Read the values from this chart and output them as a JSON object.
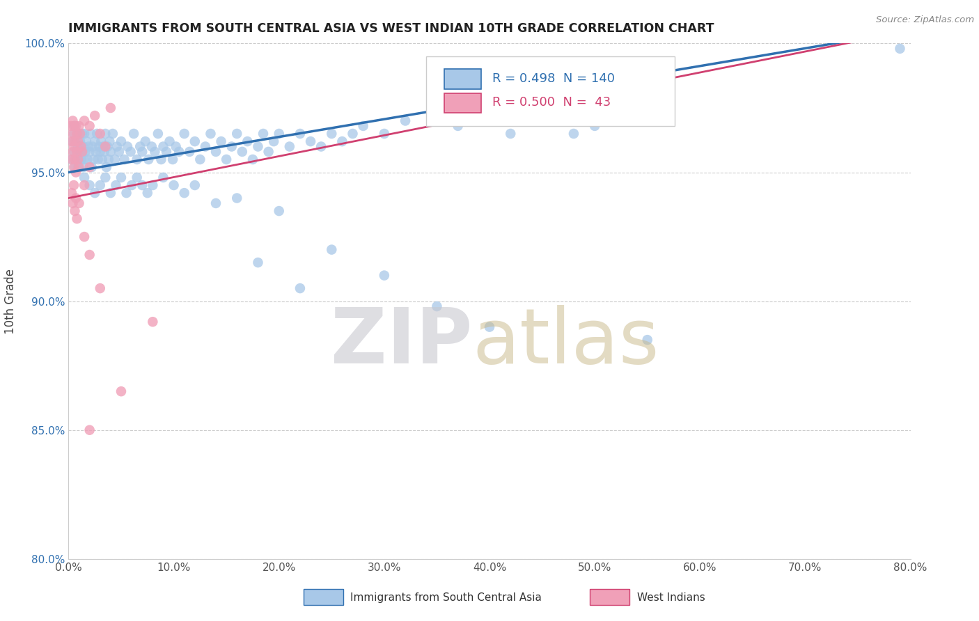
{
  "title": "IMMIGRANTS FROM SOUTH CENTRAL ASIA VS WEST INDIAN 10TH GRADE CORRELATION CHART",
  "source": "Source: ZipAtlas.com",
  "ylabel": "10th Grade",
  "xlim": [
    0.0,
    80.0
  ],
  "ylim": [
    80.0,
    100.0
  ],
  "xticks": [
    0.0,
    10.0,
    20.0,
    30.0,
    40.0,
    50.0,
    60.0,
    70.0,
    80.0
  ],
  "yticks": [
    80.0,
    85.0,
    90.0,
    95.0,
    100.0
  ],
  "blue_color": "#a8c8e8",
  "pink_color": "#f0a0b8",
  "blue_line_color": "#3070b0",
  "pink_line_color": "#d04070",
  "legend_blue_R": "0.498",
  "legend_blue_N": "140",
  "legend_pink_R": "0.500",
  "legend_pink_N": "43",
  "blue_scatter": [
    [
      0.3,
      95.5
    ],
    [
      0.4,
      96.2
    ],
    [
      0.5,
      95.8
    ],
    [
      0.5,
      96.5
    ],
    [
      0.6,
      95.2
    ],
    [
      0.6,
      96.8
    ],
    [
      0.7,
      95.5
    ],
    [
      0.7,
      96.2
    ],
    [
      0.8,
      95.8
    ],
    [
      0.8,
      96.5
    ],
    [
      0.9,
      95.2
    ],
    [
      0.9,
      96.0
    ],
    [
      1.0,
      95.5
    ],
    [
      1.0,
      96.5
    ],
    [
      1.1,
      95.8
    ],
    [
      1.1,
      96.2
    ],
    [
      1.2,
      95.5
    ],
    [
      1.2,
      96.0
    ],
    [
      1.3,
      95.8
    ],
    [
      1.3,
      96.5
    ],
    [
      1.4,
      95.2
    ],
    [
      1.4,
      96.0
    ],
    [
      1.5,
      95.5
    ],
    [
      1.5,
      96.5
    ],
    [
      1.6,
      95.8
    ],
    [
      1.7,
      96.2
    ],
    [
      1.8,
      95.5
    ],
    [
      1.9,
      96.0
    ],
    [
      2.0,
      95.8
    ],
    [
      2.1,
      96.5
    ],
    [
      2.2,
      95.2
    ],
    [
      2.3,
      96.0
    ],
    [
      2.4,
      95.5
    ],
    [
      2.5,
      96.2
    ],
    [
      2.6,
      95.8
    ],
    [
      2.7,
      96.5
    ],
    [
      2.8,
      95.5
    ],
    [
      2.9,
      96.0
    ],
    [
      3.0,
      95.8
    ],
    [
      3.1,
      96.2
    ],
    [
      3.2,
      95.5
    ],
    [
      3.3,
      96.0
    ],
    [
      3.4,
      95.8
    ],
    [
      3.5,
      96.5
    ],
    [
      3.6,
      95.2
    ],
    [
      3.7,
      96.0
    ],
    [
      3.8,
      95.5
    ],
    [
      3.9,
      96.2
    ],
    [
      4.0,
      95.8
    ],
    [
      4.2,
      96.5
    ],
    [
      4.4,
      95.5
    ],
    [
      4.6,
      96.0
    ],
    [
      4.8,
      95.8
    ],
    [
      5.0,
      96.2
    ],
    [
      5.3,
      95.5
    ],
    [
      5.6,
      96.0
    ],
    [
      5.9,
      95.8
    ],
    [
      6.2,
      96.5
    ],
    [
      6.5,
      95.5
    ],
    [
      6.8,
      96.0
    ],
    [
      7.0,
      95.8
    ],
    [
      7.3,
      96.2
    ],
    [
      7.6,
      95.5
    ],
    [
      7.9,
      96.0
    ],
    [
      8.2,
      95.8
    ],
    [
      8.5,
      96.5
    ],
    [
      8.8,
      95.5
    ],
    [
      9.0,
      96.0
    ],
    [
      9.3,
      95.8
    ],
    [
      9.6,
      96.2
    ],
    [
      9.9,
      95.5
    ],
    [
      10.2,
      96.0
    ],
    [
      10.5,
      95.8
    ],
    [
      11.0,
      96.5
    ],
    [
      11.5,
      95.8
    ],
    [
      12.0,
      96.2
    ],
    [
      12.5,
      95.5
    ],
    [
      13.0,
      96.0
    ],
    [
      13.5,
      96.5
    ],
    [
      14.0,
      95.8
    ],
    [
      14.5,
      96.2
    ],
    [
      15.0,
      95.5
    ],
    [
      15.5,
      96.0
    ],
    [
      16.0,
      96.5
    ],
    [
      16.5,
      95.8
    ],
    [
      17.0,
      96.2
    ],
    [
      17.5,
      95.5
    ],
    [
      18.0,
      96.0
    ],
    [
      18.5,
      96.5
    ],
    [
      19.0,
      95.8
    ],
    [
      19.5,
      96.2
    ],
    [
      20.0,
      96.5
    ],
    [
      21.0,
      96.0
    ],
    [
      22.0,
      96.5
    ],
    [
      23.0,
      96.2
    ],
    [
      24.0,
      96.0
    ],
    [
      25.0,
      96.5
    ],
    [
      26.0,
      96.2
    ],
    [
      27.0,
      96.5
    ],
    [
      28.0,
      96.8
    ],
    [
      30.0,
      96.5
    ],
    [
      32.0,
      97.0
    ],
    [
      35.0,
      97.2
    ],
    [
      37.0,
      96.8
    ],
    [
      40.0,
      97.0
    ],
    [
      42.0,
      96.5
    ],
    [
      45.0,
      97.5
    ],
    [
      48.0,
      96.5
    ],
    [
      50.0,
      96.8
    ],
    [
      1.5,
      94.8
    ],
    [
      2.0,
      94.5
    ],
    [
      2.5,
      94.2
    ],
    [
      3.0,
      94.5
    ],
    [
      3.5,
      94.8
    ],
    [
      4.0,
      94.2
    ],
    [
      4.5,
      94.5
    ],
    [
      5.0,
      94.8
    ],
    [
      5.5,
      94.2
    ],
    [
      6.0,
      94.5
    ],
    [
      6.5,
      94.8
    ],
    [
      7.0,
      94.5
    ],
    [
      7.5,
      94.2
    ],
    [
      8.0,
      94.5
    ],
    [
      9.0,
      94.8
    ],
    [
      10.0,
      94.5
    ],
    [
      11.0,
      94.2
    ],
    [
      12.0,
      94.5
    ],
    [
      14.0,
      93.8
    ],
    [
      16.0,
      94.0
    ],
    [
      18.0,
      91.5
    ],
    [
      20.0,
      93.5
    ],
    [
      22.0,
      90.5
    ],
    [
      25.0,
      92.0
    ],
    [
      30.0,
      91.0
    ],
    [
      35.0,
      89.8
    ],
    [
      40.0,
      89.0
    ],
    [
      55.0,
      88.5
    ],
    [
      79.0,
      99.8
    ]
  ],
  "pink_scatter": [
    [
      0.2,
      96.8
    ],
    [
      0.3,
      96.2
    ],
    [
      0.3,
      95.5
    ],
    [
      0.4,
      96.5
    ],
    [
      0.4,
      95.8
    ],
    [
      0.4,
      97.0
    ],
    [
      0.5,
      96.0
    ],
    [
      0.5,
      95.2
    ],
    [
      0.5,
      96.8
    ],
    [
      0.6,
      95.5
    ],
    [
      0.6,
      96.2
    ],
    [
      0.7,
      96.8
    ],
    [
      0.7,
      95.0
    ],
    [
      0.8,
      96.5
    ],
    [
      0.8,
      95.8
    ],
    [
      0.9,
      96.2
    ],
    [
      0.9,
      95.5
    ],
    [
      1.0,
      96.8
    ],
    [
      1.0,
      95.2
    ],
    [
      1.1,
      96.5
    ],
    [
      1.2,
      96.0
    ],
    [
      1.3,
      95.8
    ],
    [
      1.5,
      97.0
    ],
    [
      1.5,
      94.5
    ],
    [
      2.0,
      96.8
    ],
    [
      2.0,
      95.2
    ],
    [
      2.5,
      97.2
    ],
    [
      3.0,
      96.5
    ],
    [
      3.5,
      96.0
    ],
    [
      4.0,
      97.5
    ],
    [
      0.3,
      94.2
    ],
    [
      0.4,
      93.8
    ],
    [
      0.5,
      94.5
    ],
    [
      0.6,
      93.5
    ],
    [
      0.7,
      94.0
    ],
    [
      0.8,
      93.2
    ],
    [
      1.0,
      93.8
    ],
    [
      1.5,
      92.5
    ],
    [
      2.0,
      91.8
    ],
    [
      3.0,
      90.5
    ],
    [
      8.0,
      89.2
    ],
    [
      2.0,
      85.0
    ],
    [
      5.0,
      86.5
    ]
  ],
  "blue_trend": [
    0.0,
    95.0,
    80.0,
    100.5
  ],
  "pink_trend": [
    0.0,
    94.0,
    80.0,
    100.5
  ]
}
